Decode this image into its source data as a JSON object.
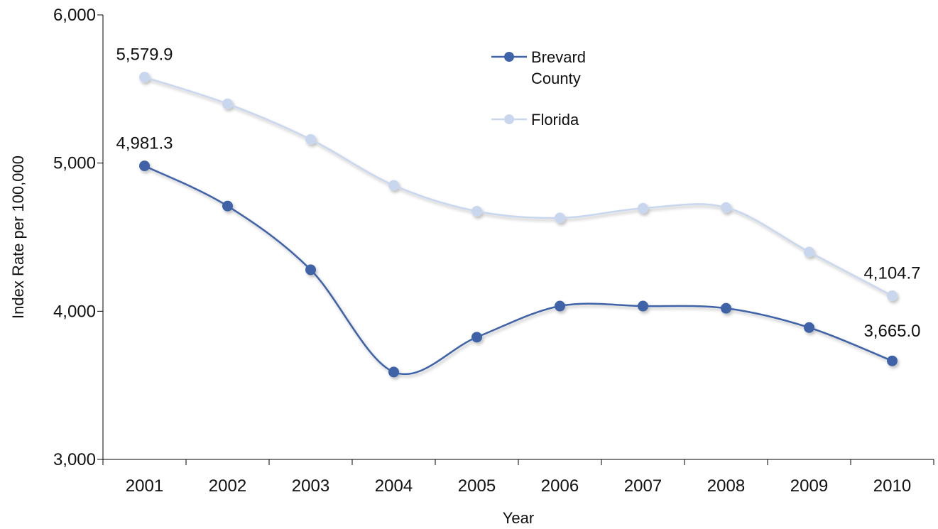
{
  "chart_data": {
    "type": "line",
    "title": "",
    "xlabel": "Year",
    "ylabel": "Index Rate per 100,000",
    "categories": [
      "2001",
      "2002",
      "2003",
      "2004",
      "2005",
      "2006",
      "2007",
      "2008",
      "2009",
      "2010"
    ],
    "ylim": [
      3000,
      6000
    ],
    "yticks": [
      "3,000",
      "4,000",
      "5,000",
      "6,000"
    ],
    "grid": false,
    "legend_position": "top-center",
    "series": [
      {
        "name": "Brevard County",
        "color": "#3f64a8",
        "values": [
          4981.3,
          4710,
          4280,
          3590,
          3825,
          4035,
          4035,
          4020,
          3890,
          3665.0
        ]
      },
      {
        "name": "Florida",
        "color": "#c9d7ee",
        "values": [
          5579.9,
          5400,
          5160,
          4850,
          4675,
          4630,
          4695,
          4700,
          4400,
          4104.7
        ]
      }
    ],
    "data_labels": [
      {
        "text": "5,579.9"
      },
      {
        "text": "4,981.3"
      },
      {
        "text": "4,104.7"
      },
      {
        "text": "3,665.0"
      }
    ]
  }
}
